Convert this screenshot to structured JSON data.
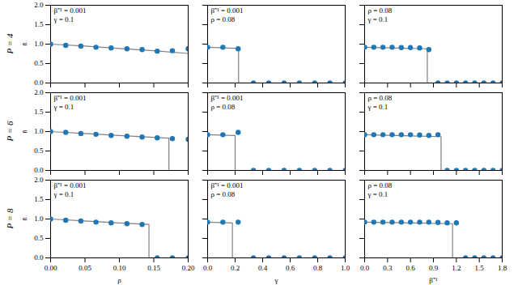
{
  "chart_data": [
    {
      "type": "line",
      "title": "P = 4",
      "y_label": "n̄",
      "annotations": [
        "β̃⁻¹ = 0.001",
        "γ = 0.1"
      ],
      "xlim": [
        0,
        0.2
      ],
      "ylim": [
        0,
        2
      ],
      "xticks": [
        {
          "value": 0,
          "label": "0.00"
        },
        {
          "value": 0.05,
          "label": "0.05"
        },
        {
          "value": 0.1,
          "label": "0.10"
        },
        {
          "value": 0.15,
          "label": "0.15"
        },
        {
          "value": 0.2,
          "label": "0.20"
        }
      ],
      "yticks": [
        {
          "value": 0,
          "label": "0.0"
        },
        {
          "value": 0.5,
          "label": "0.5"
        },
        {
          "value": 1,
          "label": "1.0"
        },
        {
          "value": 1.5,
          "label": "1.5"
        },
        {
          "value": 2,
          "label": "2.0"
        }
      ],
      "tick_labels": "y",
      "series": [
        {
          "type": "line",
          "color": "#808080",
          "x": [
            0,
            0.05,
            0.1,
            0.15,
            0.2
          ],
          "values": [
            1.0,
            0.95,
            0.89,
            0.83,
            0.76
          ]
        },
        {
          "type": "scatter",
          "marker": "circle",
          "color": "#1f77b4",
          "x": [
            0,
            0.022,
            0.044,
            0.066,
            0.088,
            0.111,
            0.133,
            0.155,
            0.177,
            0.2
          ],
          "values": [
            1.0,
            0.97,
            0.95,
            0.92,
            0.9,
            0.88,
            0.86,
            0.82,
            0.83,
            0.88
          ]
        }
      ]
    },
    {
      "type": "line",
      "annotations": [
        "β̃⁻¹ = 0.001",
        "ρ = 0.08"
      ],
      "xlim": [
        0,
        1
      ],
      "ylim": [
        0,
        2
      ],
      "xticks": [
        {
          "value": 0,
          "label": "0.0"
        },
        {
          "value": 0.2,
          "label": "0.2"
        },
        {
          "value": 0.4,
          "label": "0.4"
        },
        {
          "value": 0.6,
          "label": "0.6"
        },
        {
          "value": 0.8,
          "label": "0.8"
        },
        {
          "value": 1,
          "label": "1.0"
        }
      ],
      "yticks": [
        {
          "value": 0,
          "label": "0.0"
        },
        {
          "value": 0.5,
          "label": "0.5"
        },
        {
          "value": 1,
          "label": "1.0"
        },
        {
          "value": 1.5,
          "label": "1.5"
        },
        {
          "value": 2,
          "label": "2.0"
        }
      ],
      "tick_labels": false,
      "series": [
        {
          "type": "line",
          "color": "#808080",
          "x": [
            0,
            0.225,
            0.225,
            1
          ],
          "values": [
            0.92,
            0.89,
            0,
            0
          ]
        },
        {
          "type": "scatter",
          "marker": "circle",
          "color": "#1f77b4",
          "x": [
            0,
            0.111,
            0.222,
            0.333,
            0.444,
            0.556,
            0.667,
            0.778,
            0.889,
            1.0
          ],
          "values": [
            0.92,
            0.92,
            0.88,
            0,
            0,
            0,
            0,
            0,
            0,
            0
          ]
        }
      ]
    },
    {
      "type": "line",
      "annotations": [
        "ρ = 0.08",
        "γ = 0.1"
      ],
      "xlim": [
        0,
        1.8
      ],
      "ylim": [
        0,
        2
      ],
      "xticks": [
        {
          "value": 0,
          "label": "0.0"
        },
        {
          "value": 0.3,
          "label": "0.3"
        },
        {
          "value": 0.6,
          "label": "0.6"
        },
        {
          "value": 0.9,
          "label": "0.9"
        },
        {
          "value": 1.2,
          "label": "1.2"
        },
        {
          "value": 1.5,
          "label": "1.5"
        },
        {
          "value": 1.8,
          "label": "1.8"
        }
      ],
      "yticks": [
        {
          "value": 0,
          "label": "0.0"
        },
        {
          "value": 0.5,
          "label": "0.5"
        },
        {
          "value": 1,
          "label": "1.0"
        },
        {
          "value": 1.5,
          "label": "1.5"
        },
        {
          "value": 2,
          "label": "2.0"
        }
      ],
      "tick_labels": false,
      "series": [
        {
          "type": "line",
          "color": "#808080",
          "x": [
            0,
            0.82,
            0.82,
            1.8
          ],
          "values": [
            0.92,
            0.88,
            0,
            0
          ]
        },
        {
          "type": "scatter",
          "marker": "circle",
          "color": "#1f77b4",
          "x": [
            0,
            0.12,
            0.24,
            0.36,
            0.48,
            0.6,
            0.72,
            0.84,
            0.96,
            1.08,
            1.2,
            1.32,
            1.44,
            1.56,
            1.68,
            1.8
          ],
          "values": [
            0.92,
            0.92,
            0.92,
            0.92,
            0.91,
            0.91,
            0.9,
            0.86,
            0,
            0,
            0,
            0,
            0,
            0,
            0,
            0
          ]
        }
      ]
    },
    {
      "type": "line",
      "title": "P = 6",
      "y_label": "n̄",
      "annotations": [
        "β̃⁻¹ = 0.001",
        "γ = 0.1"
      ],
      "xlim": [
        0,
        0.2
      ],
      "ylim": [
        0,
        2
      ],
      "xticks": [
        {
          "value": 0,
          "label": "0.00"
        },
        {
          "value": 0.05,
          "label": "0.05"
        },
        {
          "value": 0.1,
          "label": "0.10"
        },
        {
          "value": 0.15,
          "label": "0.15"
        },
        {
          "value": 0.2,
          "label": "0.20"
        }
      ],
      "yticks": [
        {
          "value": 0,
          "label": "0.0"
        },
        {
          "value": 0.5,
          "label": "0.5"
        },
        {
          "value": 1,
          "label": "1.0"
        },
        {
          "value": 1.5,
          "label": "1.5"
        },
        {
          "value": 2,
          "label": "2.0"
        }
      ],
      "tick_labels": "y",
      "series": [
        {
          "type": "line",
          "color": "#808080",
          "x": [
            0,
            0.05,
            0.1,
            0.15,
            0.172,
            0.172,
            0.2
          ],
          "values": [
            1.0,
            0.95,
            0.9,
            0.85,
            0.83,
            0,
            0
          ]
        },
        {
          "type": "scatter",
          "marker": "circle",
          "color": "#1f77b4",
          "x": [
            0,
            0.022,
            0.044,
            0.066,
            0.088,
            0.111,
            0.133,
            0.155,
            0.177,
            0.2
          ],
          "values": [
            1.0,
            0.98,
            0.95,
            0.93,
            0.9,
            0.88,
            0.86,
            0.84,
            0.82,
            0.8
          ]
        }
      ]
    },
    {
      "type": "line",
      "annotations": [
        "β̃⁻¹ = 0.001",
        "ρ = 0.08"
      ],
      "xlim": [
        0,
        1
      ],
      "ylim": [
        0,
        2
      ],
      "xticks": [
        {
          "value": 0,
          "label": "0.0"
        },
        {
          "value": 0.2,
          "label": "0.2"
        },
        {
          "value": 0.4,
          "label": "0.4"
        },
        {
          "value": 0.6,
          "label": "0.6"
        },
        {
          "value": 0.8,
          "label": "0.8"
        },
        {
          "value": 1,
          "label": "1.0"
        }
      ],
      "yticks": [
        {
          "value": 0,
          "label": "0.0"
        },
        {
          "value": 0.5,
          "label": "0.5"
        },
        {
          "value": 1,
          "label": "1.0"
        },
        {
          "value": 1.5,
          "label": "1.5"
        },
        {
          "value": 2,
          "label": "2.0"
        }
      ],
      "tick_labels": false,
      "series": [
        {
          "type": "line",
          "color": "#808080",
          "x": [
            0,
            0.2,
            0.2,
            1
          ],
          "values": [
            0.92,
            0.9,
            0,
            0
          ]
        },
        {
          "type": "scatter",
          "marker": "circle",
          "color": "#1f77b4",
          "x": [
            0,
            0.111,
            0.222,
            0.333,
            0.444,
            0.556,
            0.667,
            0.778,
            0.889,
            1.0
          ],
          "values": [
            0.92,
            0.92,
            0.98,
            0,
            0,
            0,
            0,
            0,
            0,
            0
          ]
        }
      ]
    },
    {
      "type": "line",
      "annotations": [
        "ρ = 0.08",
        "γ = 0.1"
      ],
      "xlim": [
        0,
        1.8
      ],
      "ylim": [
        0,
        2
      ],
      "xticks": [
        {
          "value": 0,
          "label": "0.0"
        },
        {
          "value": 0.3,
          "label": "0.3"
        },
        {
          "value": 0.6,
          "label": "0.6"
        },
        {
          "value": 0.9,
          "label": "0.9"
        },
        {
          "value": 1.2,
          "label": "1.2"
        },
        {
          "value": 1.5,
          "label": "1.5"
        },
        {
          "value": 1.8,
          "label": "1.8"
        }
      ],
      "yticks": [
        {
          "value": 0,
          "label": "0.0"
        },
        {
          "value": 0.5,
          "label": "0.5"
        },
        {
          "value": 1,
          "label": "1.0"
        },
        {
          "value": 1.5,
          "label": "1.5"
        },
        {
          "value": 2,
          "label": "2.0"
        }
      ],
      "tick_labels": false,
      "series": [
        {
          "type": "line",
          "color": "#808080",
          "x": [
            0,
            1.0,
            1.0,
            1.8
          ],
          "values": [
            0.92,
            0.87,
            0,
            0
          ]
        },
        {
          "type": "scatter",
          "marker": "circle",
          "color": "#1f77b4",
          "x": [
            0,
            0.12,
            0.24,
            0.36,
            0.48,
            0.6,
            0.72,
            0.84,
            0.96,
            1.08,
            1.2,
            1.32,
            1.44,
            1.56,
            1.68,
            1.8
          ],
          "values": [
            0.92,
            0.92,
            0.92,
            0.92,
            0.92,
            0.92,
            0.91,
            0.9,
            0.92,
            0,
            0,
            0,
            0,
            0,
            0,
            0
          ]
        }
      ]
    },
    {
      "type": "line",
      "title": "P = 8",
      "y_label": "n̄",
      "x_label": "ρ",
      "annotations": [
        "β̃⁻¹ = 0.001",
        "γ = 0.1"
      ],
      "xlim": [
        0,
        0.2
      ],
      "ylim": [
        0,
        2
      ],
      "xticks": [
        {
          "value": 0,
          "label": "0.00"
        },
        {
          "value": 0.05,
          "label": "0.05"
        },
        {
          "value": 0.1,
          "label": "0.10"
        },
        {
          "value": 0.15,
          "label": "0.15"
        },
        {
          "value": 0.2,
          "label": "0.20"
        }
      ],
      "yticks": [
        {
          "value": 0,
          "label": "0.0"
        },
        {
          "value": 0.5,
          "label": "0.5"
        },
        {
          "value": 1,
          "label": "1.0"
        },
        {
          "value": 1.5,
          "label": "1.5"
        },
        {
          "value": 2,
          "label": "2.0"
        }
      ],
      "tick_labels": true,
      "series": [
        {
          "type": "line",
          "color": "#808080",
          "x": [
            0,
            0.05,
            0.1,
            0.143,
            0.143,
            0.2
          ],
          "values": [
            1.0,
            0.95,
            0.9,
            0.86,
            0,
            0
          ]
        },
        {
          "type": "scatter",
          "marker": "circle",
          "color": "#1f77b4",
          "x": [
            0,
            0.022,
            0.044,
            0.066,
            0.088,
            0.111,
            0.133,
            0.155,
            0.177,
            0.2
          ],
          "values": [
            1.0,
            0.97,
            0.95,
            0.92,
            0.9,
            0.88,
            0.86,
            0,
            0,
            0
          ]
        }
      ]
    },
    {
      "type": "line",
      "x_label": "γ",
      "annotations": [
        "β̃⁻¹ = 0.001",
        "ρ = 0.08"
      ],
      "xlim": [
        0,
        1
      ],
      "ylim": [
        0,
        2
      ],
      "xticks": [
        {
          "value": 0,
          "label": "0.0"
        },
        {
          "value": 0.2,
          "label": "0.2"
        },
        {
          "value": 0.4,
          "label": "0.4"
        },
        {
          "value": 0.6,
          "label": "0.6"
        },
        {
          "value": 0.8,
          "label": "0.8"
        },
        {
          "value": 1,
          "label": "1.0"
        }
      ],
      "yticks": [
        {
          "value": 0,
          "label": "0.0"
        },
        {
          "value": 0.5,
          "label": "0.5"
        },
        {
          "value": 1,
          "label": "1.0"
        },
        {
          "value": 1.5,
          "label": "1.5"
        },
        {
          "value": 2,
          "label": "2.0"
        }
      ],
      "tick_labels": "x",
      "series": [
        {
          "type": "line",
          "color": "#808080",
          "x": [
            0,
            0.18,
            0.18,
            1
          ],
          "values": [
            0.92,
            0.9,
            0,
            0
          ]
        },
        {
          "type": "scatter",
          "marker": "circle",
          "color": "#1f77b4",
          "x": [
            0,
            0.111,
            0.222,
            0.333,
            0.444,
            0.556,
            0.667,
            0.778,
            0.889,
            1.0
          ],
          "values": [
            0.92,
            0.92,
            0.92,
            0,
            0,
            0,
            0,
            0,
            0,
            0
          ]
        }
      ]
    },
    {
      "type": "line",
      "x_label": "β̃⁻¹",
      "annotations": [
        "ρ = 0.08",
        "γ = 0.1"
      ],
      "xlim": [
        0,
        1.8
      ],
      "ylim": [
        0,
        2
      ],
      "xticks": [
        {
          "value": 0,
          "label": "0.0"
        },
        {
          "value": 0.3,
          "label": "0.3"
        },
        {
          "value": 0.6,
          "label": "0.6"
        },
        {
          "value": 0.9,
          "label": "0.9"
        },
        {
          "value": 1.2,
          "label": "1.2"
        },
        {
          "value": 1.5,
          "label": "1.5"
        },
        {
          "value": 1.8,
          "label": "1.8"
        }
      ],
      "yticks": [
        {
          "value": 0,
          "label": "0.0"
        },
        {
          "value": 0.5,
          "label": "0.5"
        },
        {
          "value": 1,
          "label": "1.0"
        },
        {
          "value": 1.5,
          "label": "1.5"
        },
        {
          "value": 2,
          "label": "2.0"
        }
      ],
      "tick_labels": "x",
      "series": [
        {
          "type": "line",
          "color": "#808080",
          "x": [
            0,
            1.15,
            1.15,
            1.8
          ],
          "values": [
            0.92,
            0.88,
            0,
            0
          ]
        },
        {
          "type": "scatter",
          "marker": "circle",
          "color": "#1f77b4",
          "x": [
            0,
            0.12,
            0.24,
            0.36,
            0.48,
            0.6,
            0.72,
            0.84,
            0.96,
            1.08,
            1.2,
            1.32,
            1.44,
            1.56,
            1.68,
            1.8
          ],
          "values": [
            0.92,
            0.92,
            0.92,
            0.92,
            0.92,
            0.92,
            0.92,
            0.92,
            0.91,
            0.9,
            0.9,
            0,
            0,
            0,
            0,
            0
          ]
        }
      ]
    }
  ]
}
